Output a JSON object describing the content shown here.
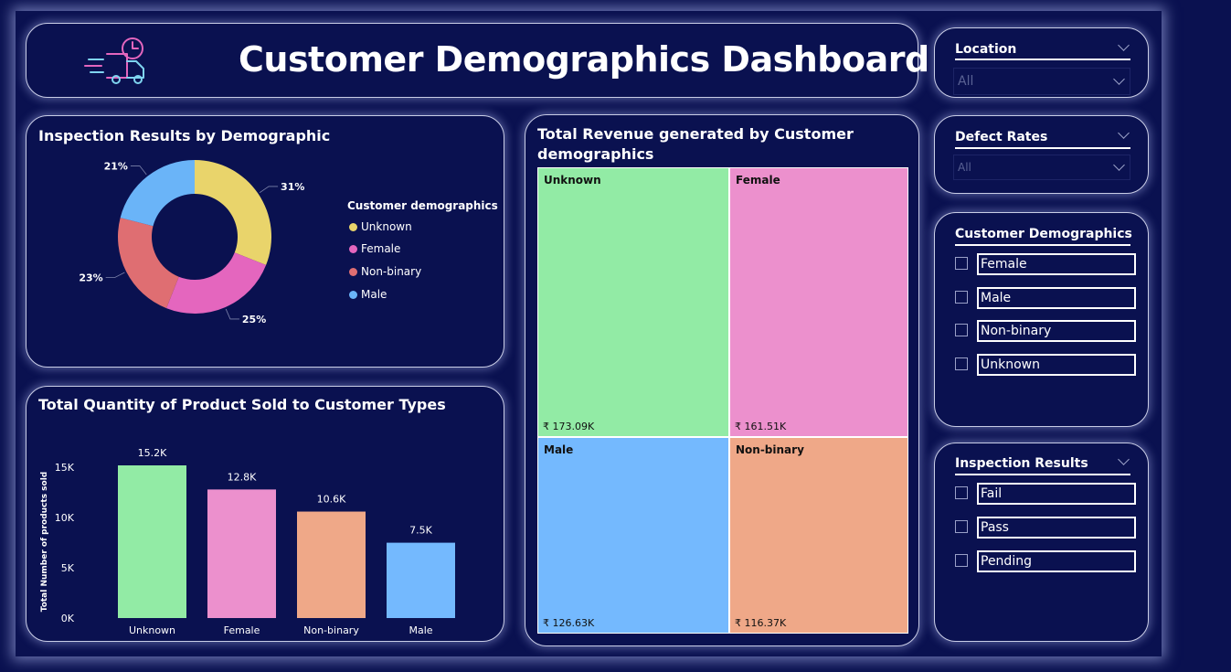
{
  "header": {
    "title": "Customer Demographics Dashboard"
  },
  "donut": {
    "title": "Inspection Results by Demographic",
    "legend_title": "Customer demographics",
    "legend": [
      "Unknown",
      "Female",
      "Non-binary",
      "Male"
    ],
    "labels": [
      "31%",
      "25%",
      "23%",
      "21%"
    ]
  },
  "bar": {
    "title": "Total Quantity of Product Sold to Customer Types"
  },
  "treemap": {
    "title_line1": "Total Revenue generated by Customer",
    "title_line2": "demographics",
    "cells": [
      {
        "name": "Unknown",
        "value": "₹ 173.09K"
      },
      {
        "name": "Female",
        "value": "₹ 161.51K"
      },
      {
        "name": "Male",
        "value": "₹ 126.63K"
      },
      {
        "name": "Non-binary",
        "value": "₹ 116.37K"
      }
    ]
  },
  "slicers": {
    "location": {
      "title": "Location",
      "value": "All"
    },
    "defect_rates": {
      "title": "Defect Rates",
      "value": "All"
    },
    "customer_demographics": {
      "title": "Customer Demographics",
      "options": [
        "Female",
        "Male",
        "Non-binary",
        "Unknown"
      ]
    },
    "inspection_results": {
      "title": "Inspection Results",
      "options": [
        "Fail",
        "Pass",
        "Pending"
      ]
    }
  },
  "colors": {
    "background": "#0a1150",
    "unknown": "#92eba5",
    "female": "#ec90cd",
    "non_binary": "#efa888",
    "male": "#74b9fe",
    "donut_unknown": "#e9d46b",
    "donut_female": "#e466be",
    "donut_non_binary": "#df6e72",
    "donut_male": "#6ab4f8"
  },
  "chart_data": [
    {
      "type": "pie",
      "title": "Inspection Results by Demographic",
      "categories": [
        "Unknown",
        "Female",
        "Non-binary",
        "Male"
      ],
      "values": [
        31,
        25,
        23,
        21
      ],
      "legend_title": "Customer demographics",
      "legend_position": "right"
    },
    {
      "type": "bar",
      "title": "Total Quantity of Product Sold to Customer Types",
      "categories": [
        "Unknown",
        "Female",
        "Non-binary",
        "Male"
      ],
      "values": [
        15200,
        12800,
        10600,
        7500
      ],
      "data_labels": [
        "15.2K",
        "12.8K",
        "10.6K",
        "7.5K"
      ],
      "ylabel": "Total Number of products sold",
      "xlabel": "",
      "yticks": [
        "0K",
        "5K",
        "10K",
        "15K"
      ],
      "ylim": [
        0,
        15200
      ]
    },
    {
      "type": "treemap",
      "title": "Total Revenue generated by Customer demographics",
      "categories": [
        "Unknown",
        "Female",
        "Male",
        "Non-binary"
      ],
      "values": [
        173.09,
        161.51,
        126.63,
        116.37
      ],
      "unit": "₹ K"
    }
  ]
}
